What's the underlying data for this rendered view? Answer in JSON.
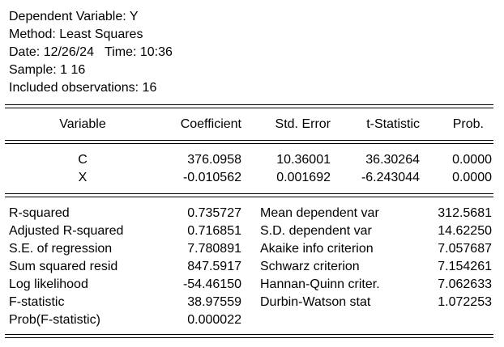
{
  "header": {
    "dependent": "Dependent Variable: Y",
    "method": "Method: Least Squares",
    "datetime": "Date: 12/26/24   Time: 10:36",
    "sample": "Sample: 1 16",
    "observations": "Included observations: 16"
  },
  "table": {
    "columns": [
      "Variable",
      "Coefficient",
      "Std. Error",
      "t-Statistic",
      "Prob."
    ],
    "rows": [
      {
        "variable": "C",
        "coefficient": "376.0958",
        "std_error": "10.36001",
        "t_stat": "36.30264",
        "prob": "0.0000"
      },
      {
        "variable": "X",
        "coefficient": "-0.010562",
        "std_error": "0.001692",
        "t_stat": "-6.243044",
        "prob": "0.0000"
      }
    ]
  },
  "stats": {
    "left": [
      {
        "label": "R-squared",
        "value": "0.735727"
      },
      {
        "label": "Adjusted R-squared",
        "value": "0.716851"
      },
      {
        "label": "S.E. of regression",
        "value": "7.780891"
      },
      {
        "label": "Sum squared resid",
        "value": "847.5917"
      },
      {
        "label": "Log likelihood",
        "value": "-54.46150"
      },
      {
        "label": "F-statistic",
        "value": "38.97559"
      },
      {
        "label": "Prob(F-statistic)",
        "value": "0.000022"
      }
    ],
    "right": [
      {
        "label": "Mean dependent var",
        "value": "312.5681"
      },
      {
        "label": "S.D. dependent var",
        "value": "14.62250"
      },
      {
        "label": "Akaike info criterion",
        "value": "7.057687"
      },
      {
        "label": "Schwarz criterion",
        "value": "7.154261"
      },
      {
        "label": "Hannan-Quinn criter.",
        "value": "7.062633"
      },
      {
        "label": "Durbin-Watson stat",
        "value": "1.072253"
      }
    ]
  }
}
